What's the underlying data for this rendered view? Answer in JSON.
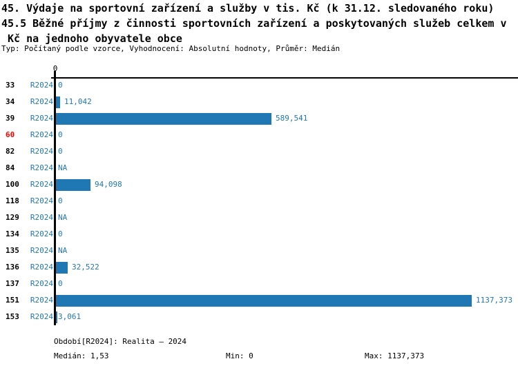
{
  "header": {
    "title_line1": "45. Výdaje na sportovní zařízení a služby v tis. Kč (k 31.12. sledovaného roku)",
    "title_line2": "45.5 Běžné příjmy z činnosti sportovních zařízení a poskytovaných služeb celkem v",
    "title_line3": " Kč na jednoho obyvatele obce",
    "meta_line": "Typ: Počítaný podle vzorce, Vyhodnocení: Absolutní hodnoty, Průměr: Medián"
  },
  "chart_data": {
    "type": "bar",
    "orientation": "horizontal",
    "title": "45. Výdaje na sportovní zařízení a služby v tis. Kč (k 31.12. sledovaného roku) / 45.5 Běžné příjmy z činnosti sportovních zařízení a poskytovaných služeb celkem v Kč na jednoho obyvatele obce",
    "categories": [
      "33",
      "34",
      "39",
      "60",
      "82",
      "84",
      "100",
      "118",
      "129",
      "134",
      "135",
      "136",
      "137",
      "151",
      "153"
    ],
    "series": [
      {
        "name": "R2024",
        "values": [
          0,
          11.042,
          589.541,
          0,
          0,
          null,
          94.098,
          0,
          null,
          0,
          null,
          32.522,
          0,
          1137.373,
          3.061
        ],
        "display": [
          "0",
          "11,042",
          "589,541",
          "0",
          "0",
          "NA",
          "94,098",
          "0",
          "NA",
          "0",
          "NA",
          "32,522",
          "0",
          "1137,373",
          "3,061"
        ]
      }
    ],
    "x_axis": {
      "tick_labels": [
        "0"
      ],
      "range": [
        0,
        1137.373
      ]
    },
    "highlighted_categories": [
      "60"
    ],
    "grid": false,
    "legend": false,
    "bar_color": "#1f77b4",
    "value_label_color": "#1f77b4",
    "period_label_color": "#1f77b4",
    "category_label_color": "#000000",
    "highlight_color": "#ff0000",
    "axis_color": "#000000"
  },
  "footer": {
    "period_note": "Období[R2024]: Realita – 2024",
    "median": "Medián: 1,53",
    "min": "Min: 0",
    "max": "Max: 1137,373"
  }
}
